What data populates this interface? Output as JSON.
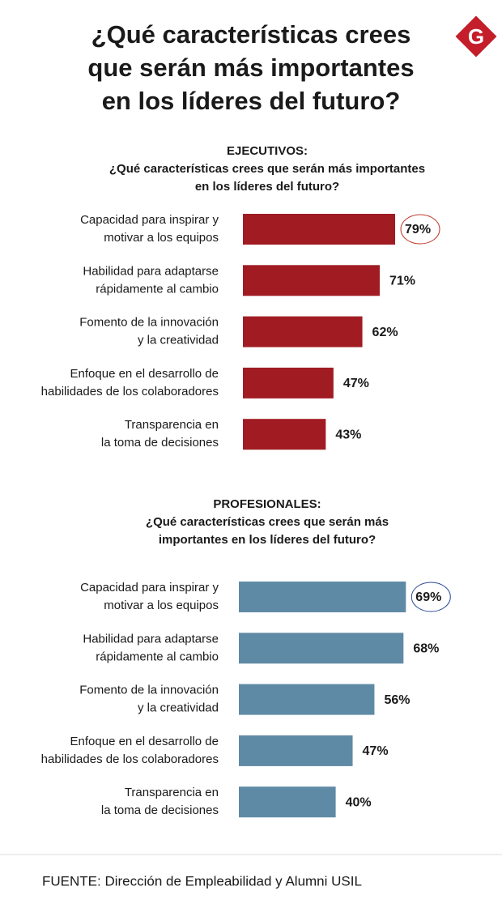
{
  "header": {
    "title": [
      "¿Qué características crees",
      "que serán más importantes",
      "en los líderes del futuro?"
    ],
    "logo": "G"
  },
  "chart_data": [
    {
      "type": "bar",
      "orientation": "horizontal",
      "title": "EJECUTIVOS:",
      "subtitle": [
        "¿Qué características crees que serán más importantes",
        "en los líderes del futuro?"
      ],
      "categories": [
        [
          "Capacidad para inspirar y",
          "motivar a los equipos"
        ],
        [
          "Habilidad para adaptarse",
          "rápidamente al cambio"
        ],
        [
          "Fomento de la innovación",
          "y la creatividad"
        ],
        [
          "Enfoque en el desarrollo de",
          "habilidades de los colaboradores"
        ],
        [
          "Transparencia en",
          "la toma de decisiones"
        ]
      ],
      "values": [
        79,
        71,
        62,
        47,
        43
      ],
      "value_labels": [
        "79%",
        "71%",
        "62%",
        "47%",
        "43%"
      ],
      "color": "#a01c22",
      "xlim": [
        0,
        100
      ]
    },
    {
      "type": "bar",
      "orientation": "horizontal",
      "title": "PROFESIONALES:",
      "subtitle": [
        "¿Qué características crees que serán más",
        "importantes en los líderes del futuro?"
      ],
      "categories": [
        [
          "Capacidad para inspirar y",
          "motivar a los equipos"
        ],
        [
          "Habilidad para adaptarse",
          "rápidamente al cambio"
        ],
        [
          "Fomento de la innovación",
          "y la creatividad"
        ],
        [
          "Enfoque en el desarrollo de",
          "habilidades de los colaboradores"
        ],
        [
          "Transparencia en",
          "la toma de decisiones"
        ]
      ],
      "values": [
        69,
        68,
        56,
        47,
        40
      ],
      "value_labels": [
        "69%",
        "68%",
        "56%",
        "47%",
        "40%"
      ],
      "color": "#5f8aa5",
      "xlim": [
        0,
        100
      ]
    }
  ],
  "source": "FUENTE: Dirección de Empleabilidad y Alumni USIL"
}
